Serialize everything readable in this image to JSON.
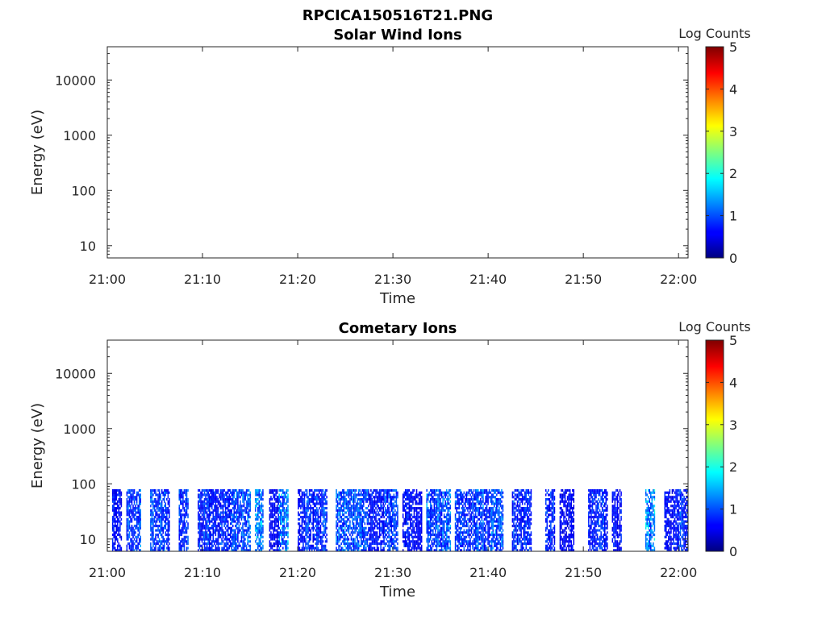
{
  "figure_title": "RPCICA150516T21.PNG",
  "colorbar": {
    "label": "Log Counts",
    "ticks": [
      "0",
      "1",
      "2",
      "3",
      "4",
      "5"
    ],
    "colormap": "jet",
    "range": [
      0,
      5
    ]
  },
  "chart_data": [
    {
      "type": "heatmap",
      "title": "Solar Wind Ions",
      "xlabel": "Time",
      "ylabel": "Energy (eV)",
      "x_ticks": [
        "21:00",
        "21:10",
        "21:20",
        "21:30",
        "21:40",
        "21:50",
        "22:00"
      ],
      "y_ticks": [
        "10",
        "100",
        "1000",
        "10000"
      ],
      "y_scale": "log",
      "xlim": [
        "21:00",
        "22:01"
      ],
      "ylim": [
        6,
        40000
      ],
      "color_range": [
        0,
        5
      ],
      "data_extent": null,
      "note_values": "no counts recorded"
    },
    {
      "type": "heatmap",
      "title": "Cometary Ions",
      "xlabel": "Time",
      "ylabel": "Energy (eV)",
      "x_ticks": [
        "21:00",
        "21:10",
        "21:20",
        "21:30",
        "21:40",
        "21:50",
        "22:00"
      ],
      "y_ticks": [
        "10",
        "100",
        "1000",
        "10000"
      ],
      "y_scale": "log",
      "xlim": [
        "21:00",
        "22:01"
      ],
      "ylim": [
        6,
        40000
      ],
      "color_range": [
        0,
        5
      ],
      "data_extent": {
        "energy_min": 6,
        "energy_max": 80,
        "time_start": "21:00",
        "time_end": "22:01"
      },
      "active_intervals": [
        {
          "start": "21:00.5",
          "end": "21:01.5",
          "level": 0.6
        },
        {
          "start": "21:02.0",
          "end": "21:03.5",
          "level": 0.9
        },
        {
          "start": "21:04.5",
          "end": "21:06.5",
          "level": 0.9
        },
        {
          "start": "21:07.5",
          "end": "21:08.5",
          "level": 0.8
        },
        {
          "start": "21:09.5",
          "end": "21:13.0",
          "level": 0.7
        },
        {
          "start": "21:13.0",
          "end": "21:15.0",
          "level": 0.9
        },
        {
          "start": "21:15.5",
          "end": "21:16.3",
          "level": 1.3
        },
        {
          "start": "21:17.0",
          "end": "21:18.0",
          "level": 0.5
        },
        {
          "start": "21:18.0",
          "end": "21:19.0",
          "level": 1.1
        },
        {
          "start": "21:20.0",
          "end": "21:23.0",
          "level": 0.8
        },
        {
          "start": "21:24.0",
          "end": "21:27.5",
          "level": 1.0
        },
        {
          "start": "21:27.5",
          "end": "21:29.0",
          "level": 0.6
        },
        {
          "start": "21:29.0",
          "end": "21:30.5",
          "level": 0.8
        },
        {
          "start": "21:31.0",
          "end": "21:33.0",
          "level": 0.6
        },
        {
          "start": "21:33.5",
          "end": "21:36.0",
          "level": 1.0
        },
        {
          "start": "21:36.5",
          "end": "21:38.5",
          "level": 0.8
        },
        {
          "start": "21:38.5",
          "end": "21:41.5",
          "level": 0.9
        },
        {
          "start": "21:42.5",
          "end": "21:44.5",
          "level": 0.7
        },
        {
          "start": "21:46.0",
          "end": "21:47.0",
          "level": 0.7
        },
        {
          "start": "21:47.5",
          "end": "21:49.0",
          "level": 0.5
        },
        {
          "start": "21:50.5",
          "end": "21:52.5",
          "level": 0.7
        },
        {
          "start": "21:53.0",
          "end": "21:54.0",
          "level": 0.5
        },
        {
          "start": "21:56.5",
          "end": "21:57.5",
          "level": 1.3
        },
        {
          "start": "21:58.5",
          "end": "22:00.0",
          "level": 0.6
        },
        {
          "start": "22:00.0",
          "end": "22:01.0",
          "level": 0.8
        }
      ]
    }
  ]
}
